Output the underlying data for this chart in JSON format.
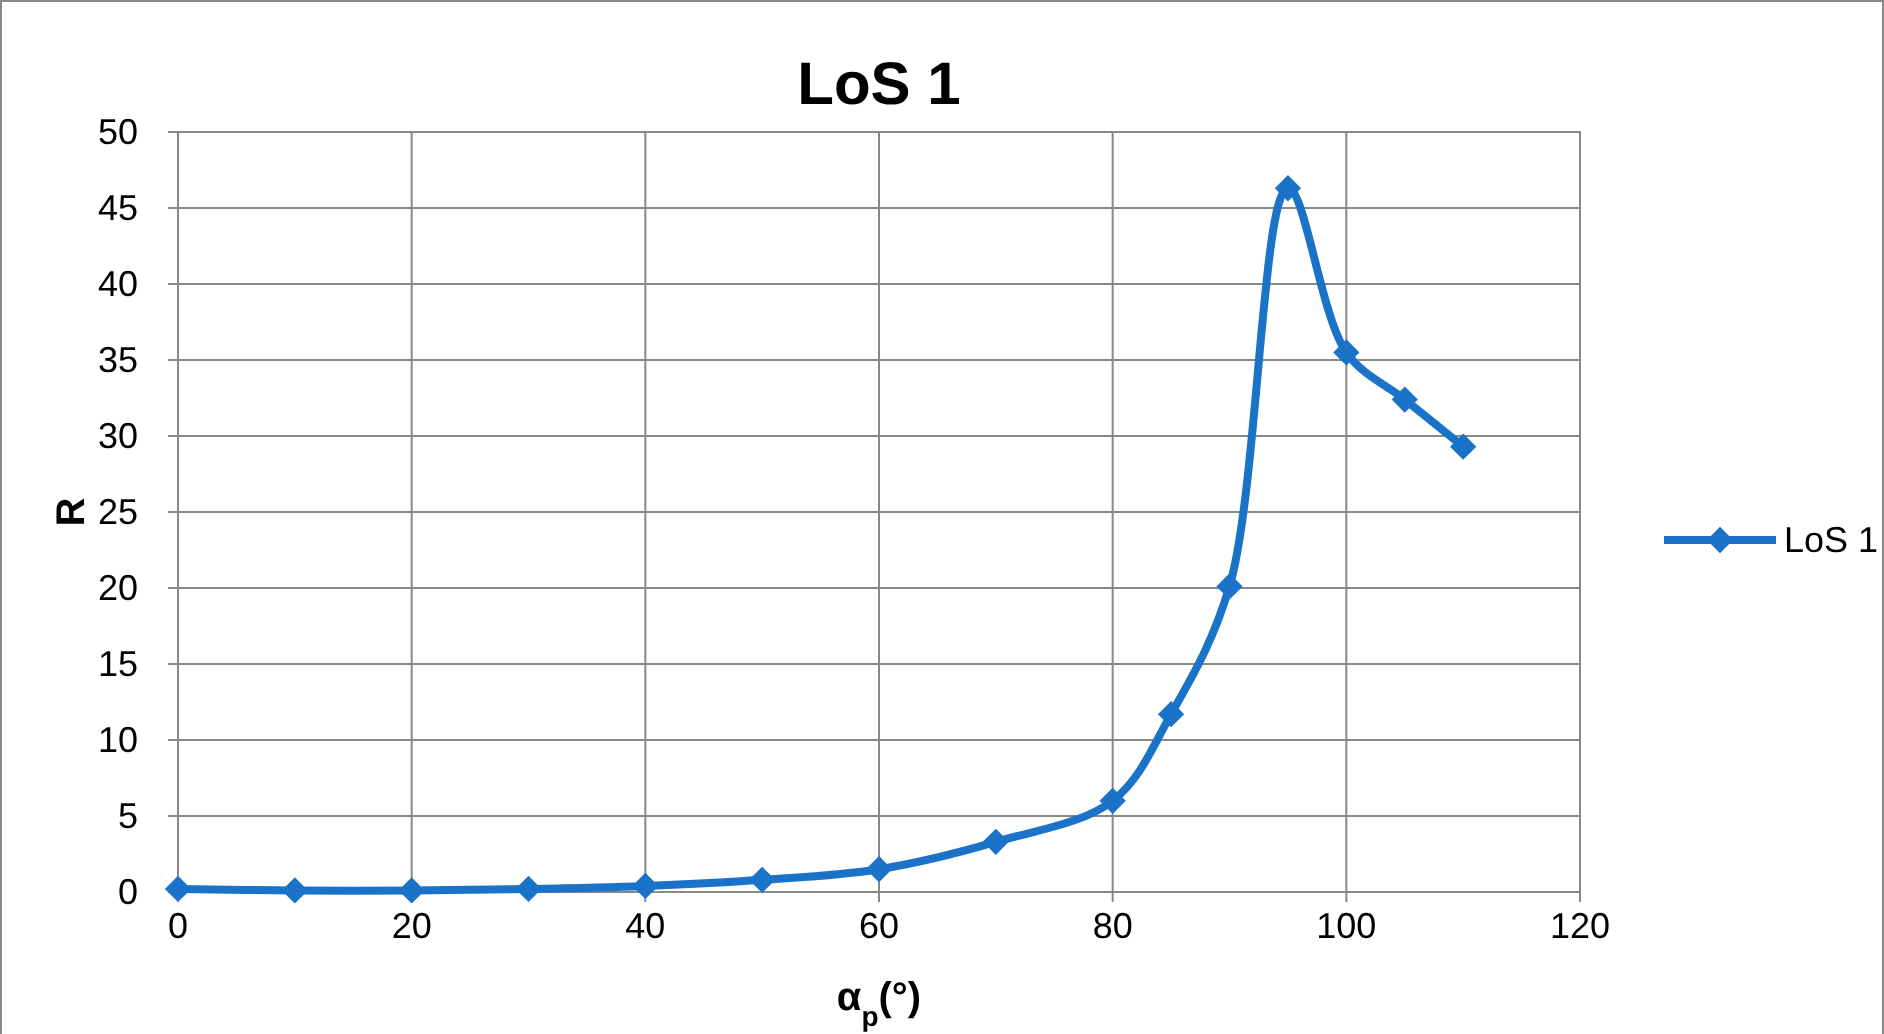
{
  "chart_data": {
    "type": "line",
    "title": "LoS 1",
    "xlabel": "α$_{p}$(°)",
    "ylabel": "R",
    "x": [
      0,
      10,
      20,
      30,
      40,
      50,
      60,
      70,
      80,
      85,
      90,
      95,
      100,
      105,
      110
    ],
    "series": [
      {
        "name": "LoS 1",
        "color": "#1a73c8",
        "values": [
          0.2,
          0.1,
          0.1,
          0.2,
          0.4,
          0.8,
          1.5,
          3.3,
          6.0,
          11.7,
          20.1,
          46.3,
          35.5,
          32.4,
          29.3
        ]
      }
    ],
    "xlim": [
      0,
      120
    ],
    "xticks": [
      0,
      20,
      40,
      60,
      80,
      100,
      120
    ],
    "ylim": [
      0,
      50
    ],
    "yticks": [
      0,
      5,
      10,
      15,
      20,
      25,
      30,
      35,
      40,
      45,
      50
    ],
    "grid": true,
    "legend": "right",
    "marker": "diamond",
    "line_style": "solid"
  }
}
